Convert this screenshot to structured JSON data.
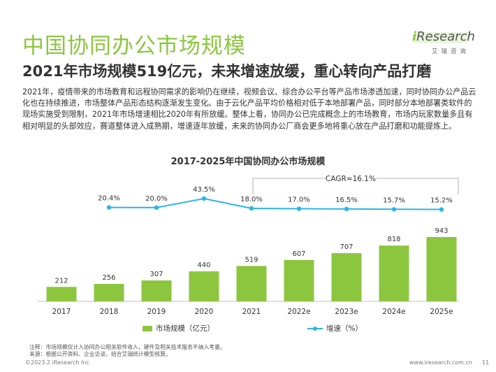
{
  "header": {
    "title": "中国协同办公市场规模",
    "subtitle": "2021年市场规模519亿元，未来增速放缓，重心转向产品打磨"
  },
  "logo": {
    "brand_i": "i",
    "brand_rest": "Research",
    "cn": "艾瑞咨询"
  },
  "description": "2021年，疫情带来的市场教育和远程协同需求的影响仍在继续，视频会议、综合办公平台等产品市场渗透加速，同时协同办公产品云化也在持续推进，市场整体产品形态结构逐渐发生变化。由于云化产品平均价格相对低于本地部署产品，同时部分本地部署类软件的现场实施受到限制，2021年市场增速相比2020年有所放缓。整体上看，协同办公已完成概念上的市场教育，市场内玩家数量多且有相对明显的头部效应，赛道整体进入成熟期，增速逐年放缓，未来的协同办公厂商会更多地将重心放在产品打磨和功能提炼上。",
  "chart_data": {
    "type": "bar",
    "title": "2017-2025年中国协同办公市场规模",
    "categories": [
      "2017",
      "2018",
      "2019",
      "2020",
      "2021",
      "2022e",
      "2023e",
      "2024e",
      "2025e"
    ],
    "series": [
      {
        "name": "市场规模（亿元）",
        "type": "bar",
        "values": [
          212,
          256,
          307,
          440,
          519,
          607,
          707,
          818,
          943
        ],
        "labels": [
          "212",
          "256",
          "307",
          "440",
          "519",
          "607",
          "707",
          "818",
          "943"
        ],
        "color": "#8cc63f"
      },
      {
        "name": "增速（%）",
        "type": "line",
        "values": [
          20.4,
          20.0,
          43.5,
          18.0,
          17.0,
          16.5,
          15.7,
          15.2
        ],
        "x": [
          "2018",
          "2019",
          "2020",
          "2021",
          "2022e",
          "2023e",
          "2024e",
          "2025e"
        ],
        "labels": [
          "20.4%",
          "20.0%",
          "43.5%",
          "18.0%",
          "17.0%",
          "16.5%",
          "15.7%",
          "15.2%"
        ],
        "color": "#29b6e6"
      }
    ],
    "annotation": "CAGR=16.1%",
    "legend_position": "bottom"
  },
  "notes": {
    "note": "注释：市场规模仅计入协同办公相关软件收入，硬件及相关技术服务不纳入考量。",
    "source": "来源：根据公开资料、企业访谈，结合艾瑞统计模型核算。"
  },
  "footer": {
    "copyright": "©2023.2 iResearch Inc",
    "website": "www.iresearch.com.cn",
    "page": "11"
  }
}
